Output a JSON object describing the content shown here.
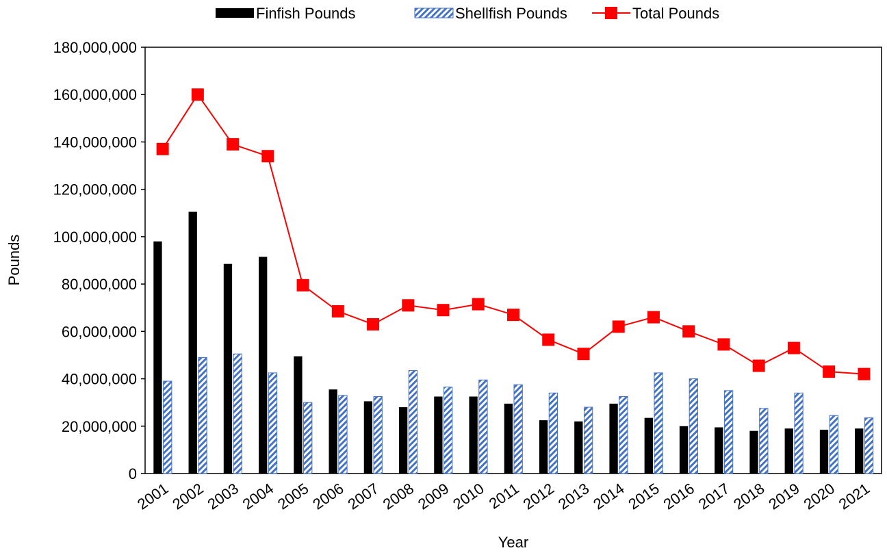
{
  "chart_data": {
    "type": "bar_line",
    "categories": [
      "2001",
      "2002",
      "2003",
      "2004",
      "2005",
      "2006",
      "2007",
      "2008",
      "2009",
      "2010",
      "2011",
      "2012",
      "2013",
      "2014",
      "2015",
      "2016",
      "2017",
      "2018",
      "2019",
      "2020",
      "2021"
    ],
    "series": [
      {
        "name": "Finfish Pounds",
        "color": "#000000",
        "kind": "bar",
        "values": [
          98000000,
          110500000,
          88500000,
          91500000,
          49500000,
          35500000,
          30500000,
          28000000,
          32500000,
          32500000,
          29500000,
          22500000,
          22000000,
          29500000,
          23500000,
          20000000,
          19500000,
          18000000,
          19000000,
          18500000,
          19000000
        ]
      },
      {
        "name": "Shellfish Pounds",
        "color": "#4472c4",
        "kind": "bar",
        "pattern": "hatch",
        "values": [
          39000000,
          49000000,
          50500000,
          42500000,
          30000000,
          33000000,
          32500000,
          43500000,
          36500000,
          39500000,
          37500000,
          34000000,
          28000000,
          32500000,
          42500000,
          40000000,
          35000000,
          27500000,
          34000000,
          24500000,
          23500000
        ]
      },
      {
        "name": "Total Pounds",
        "color": "#ff0000",
        "kind": "line",
        "values": [
          137000000,
          160000000,
          139000000,
          134000000,
          79500000,
          68500000,
          63000000,
          71000000,
          69000000,
          71500000,
          67000000,
          56500000,
          50500000,
          62000000,
          66000000,
          60000000,
          54500000,
          45500000,
          53000000,
          43000000,
          42000000
        ]
      }
    ],
    "x_label": "Year",
    "y_label": "Pounds",
    "ylim": [
      0,
      180000000
    ],
    "yticks": [
      0,
      {
        "value": 20000000,
        "label": "20,000,000"
      },
      {
        "value": 40000000,
        "label": "40,000,000"
      },
      {
        "value": 60000000,
        "label": "60,000,000"
      },
      {
        "value": 80000000,
        "label": "80,000,000"
      },
      {
        "value": 100000000,
        "label": "100,000,000"
      },
      {
        "value": 120000000,
        "label": "120,000,000"
      },
      {
        "value": 140000000,
        "label": "140,000,000"
      },
      {
        "value": 160000000,
        "label": "160,000,000"
      },
      {
        "value": 180000000,
        "label": "180,000,000"
      }
    ],
    "legend": "top",
    "grid": false
  }
}
